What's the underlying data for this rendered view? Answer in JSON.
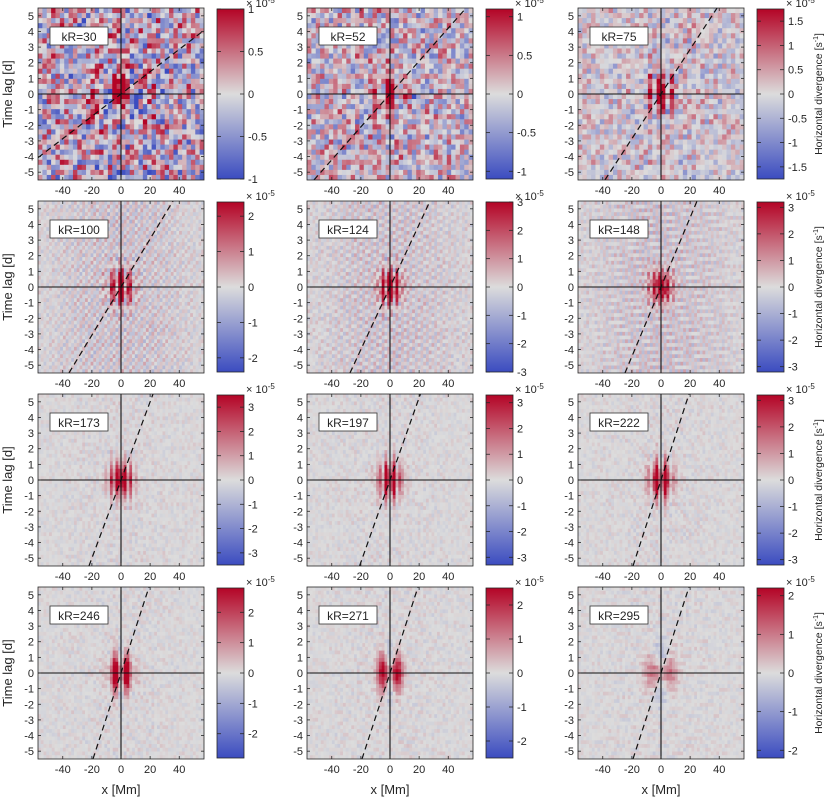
{
  "figure": {
    "ylabel": "Time lag [d]",
    "xlabel": "x [Mm]",
    "colorbar_label": "Horizontal divergence [s",
    "colorbar_label_exp": "-1",
    "colorbar_label_close": "]",
    "exponent_base": "× 10",
    "exponent_power": "-5"
  },
  "chart_data": {
    "type": "heatmap",
    "xlim": [
      -57,
      57
    ],
    "ylim": [
      -5.5,
      5.5
    ],
    "x_ticks": [
      "-40",
      "-20",
      "0",
      "20",
      "40"
    ],
    "x_tick_values": [
      -40,
      -20,
      0,
      20,
      40
    ],
    "y_ticks": [
      "5",
      "4",
      "3",
      "2",
      "1",
      "0",
      "-1",
      "-2",
      "-3",
      "-4",
      "-5"
    ],
    "y_tick_values": [
      5,
      4,
      3,
      2,
      1,
      0,
      -1,
      -2,
      -3,
      -4,
      -5
    ],
    "colormap": {
      "low": "#3b4cc0",
      "mid": "#dcdcdc",
      "high": "#b40426"
    },
    "panels": [
      {
        "label": "kR=30",
        "dashed_slope_mm_per_day": 14.0,
        "clim": 1.0,
        "cb_ticks": [
          1,
          0.5,
          0,
          -0.5,
          -1
        ],
        "cb_tick_labels": [
          "1",
          "0.5",
          "0",
          "-0.5",
          "-1"
        ]
      },
      {
        "label": "kR=52",
        "dashed_slope_mm_per_day": 9.5,
        "clim": 1.1,
        "cb_ticks": [
          1,
          0.5,
          0,
          -0.5,
          -1
        ],
        "cb_tick_labels": [
          "1",
          "0.5",
          "0",
          "-0.5",
          "-1"
        ]
      },
      {
        "label": "kR=75",
        "dashed_slope_mm_per_day": 7.0,
        "clim": 1.75,
        "cb_ticks": [
          1.5,
          1,
          0.5,
          0,
          -0.5,
          -1,
          -1.5
        ],
        "cb_tick_labels": [
          "1.5",
          "1",
          "0.5",
          "0",
          "-0.5",
          "-1",
          "-1.5"
        ]
      },
      {
        "label": "kR=100",
        "dashed_slope_mm_per_day": 6.5,
        "clim": 2.4,
        "cb_ticks": [
          2,
          1,
          0,
          -1,
          -2
        ],
        "cb_tick_labels": [
          "2",
          "1",
          "0",
          "-1",
          "-2"
        ]
      },
      {
        "label": "kR=124",
        "dashed_slope_mm_per_day": 5.0,
        "clim": 3.0,
        "cb_ticks": [
          3,
          2,
          1,
          0,
          -1,
          -2,
          -3
        ],
        "cb_tick_labels": [
          "3",
          "2",
          "1",
          "0",
          "-1",
          "-2",
          "-3"
        ]
      },
      {
        "label": "kR=148",
        "dashed_slope_mm_per_day": 4.5,
        "clim": 3.2,
        "cb_ticks": [
          3,
          2,
          1,
          0,
          -1,
          -2,
          -3
        ],
        "cb_tick_labels": [
          "3",
          "2",
          "1",
          "0",
          "-1",
          "-2",
          "-3"
        ]
      },
      {
        "label": "kR=173",
        "dashed_slope_mm_per_day": 4.0,
        "clim": 3.5,
        "cb_ticks": [
          3,
          2,
          1,
          0,
          -1,
          -2,
          -3
        ],
        "cb_tick_labels": [
          "3",
          "2",
          "1",
          "0",
          "-1",
          "-2",
          "-3"
        ]
      },
      {
        "label": "kR=197",
        "dashed_slope_mm_per_day": 3.8,
        "clim": 3.3,
        "cb_ticks": [
          3,
          2,
          1,
          0,
          -1,
          -2,
          -3
        ],
        "cb_tick_labels": [
          "3",
          "2",
          "1",
          "0",
          "-1",
          "-2",
          "-3"
        ]
      },
      {
        "label": "kR=222",
        "dashed_slope_mm_per_day": 3.5,
        "clim": 3.2,
        "cb_ticks": [
          3,
          2,
          1,
          0,
          -1,
          -2,
          -3
        ],
        "cb_tick_labels": [
          "3",
          "2",
          "1",
          "0",
          "-1",
          "-2",
          "-3"
        ]
      },
      {
        "label": "kR=246",
        "dashed_slope_mm_per_day": 3.5,
        "clim": 2.8,
        "cb_ticks": [
          2,
          1,
          0,
          -1,
          -2
        ],
        "cb_tick_labels": [
          "2",
          "1",
          "0",
          "-1",
          "-2"
        ]
      },
      {
        "label": "kR=271",
        "dashed_slope_mm_per_day": 3.5,
        "clim": 2.5,
        "cb_ticks": [
          2,
          1,
          0,
          -1,
          -2
        ],
        "cb_tick_labels": [
          "2",
          "1",
          "0",
          "-1",
          "-2"
        ]
      },
      {
        "label": "kR=295",
        "dashed_slope_mm_per_day": 3.5,
        "clim": 2.2,
        "cb_ticks": [
          2,
          1,
          0,
          -1,
          -2
        ],
        "cb_tick_labels": [
          "2",
          "1",
          "0",
          "-1",
          "-2"
        ]
      }
    ]
  }
}
